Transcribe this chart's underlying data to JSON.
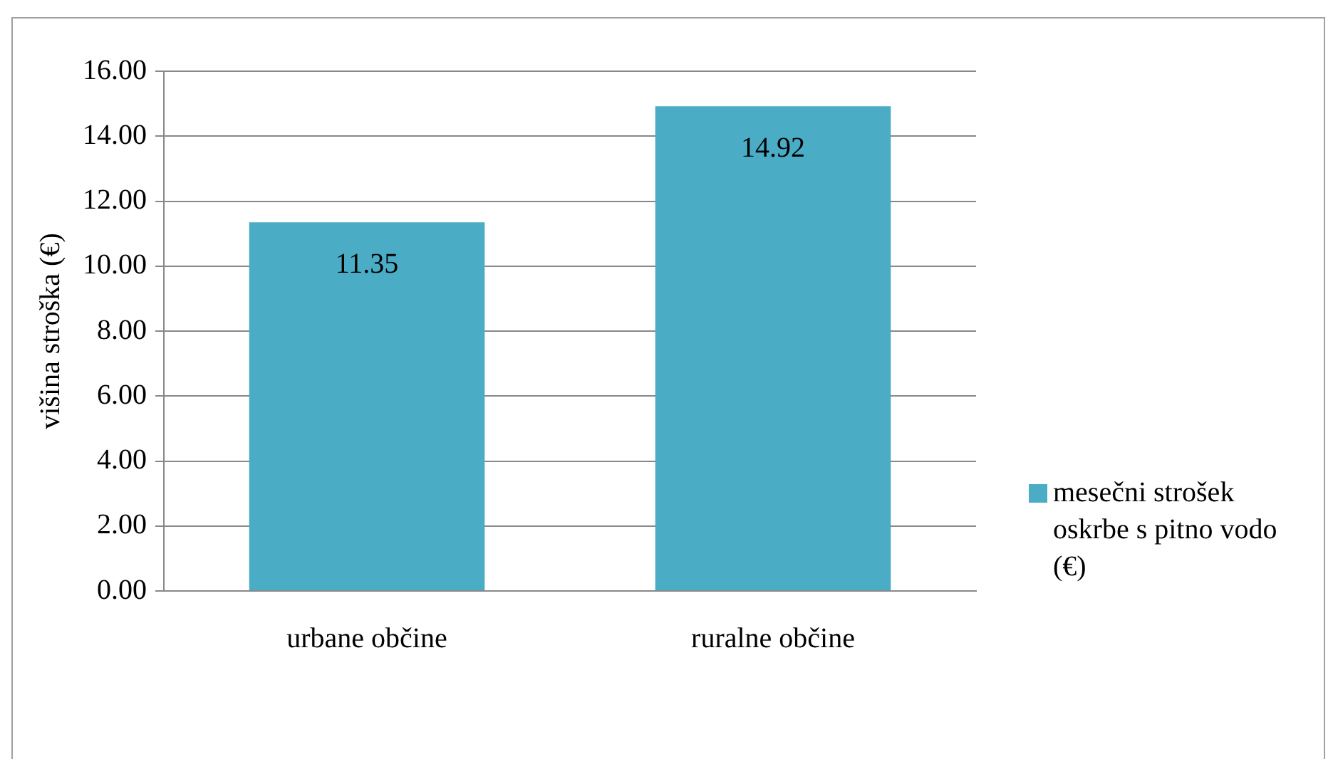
{
  "chart_data": {
    "type": "bar",
    "ylabel": "višina stroška (€)",
    "categories": [
      "urbane občine",
      "ruralne občine"
    ],
    "series": [
      {
        "name": "mesečni strošek oskrbe s pitno vodo (€)",
        "color": "#4bacc6",
        "values": [
          11.35,
          14.92
        ]
      }
    ],
    "ylim": [
      0,
      16
    ],
    "yticks": [
      {
        "value": 0,
        "label": "0.00"
      },
      {
        "value": 2,
        "label": "2.00"
      },
      {
        "value": 4,
        "label": "4.00"
      },
      {
        "value": 6,
        "label": "6.00"
      },
      {
        "value": 8,
        "label": "8.00"
      },
      {
        "value": 10,
        "label": "10.00"
      },
      {
        "value": 12,
        "label": "12.00"
      },
      {
        "value": 14,
        "label": "14.00"
      },
      {
        "value": 16,
        "label": "16.00"
      }
    ],
    "grid": "y",
    "legend": "right",
    "data_labels": true
  }
}
